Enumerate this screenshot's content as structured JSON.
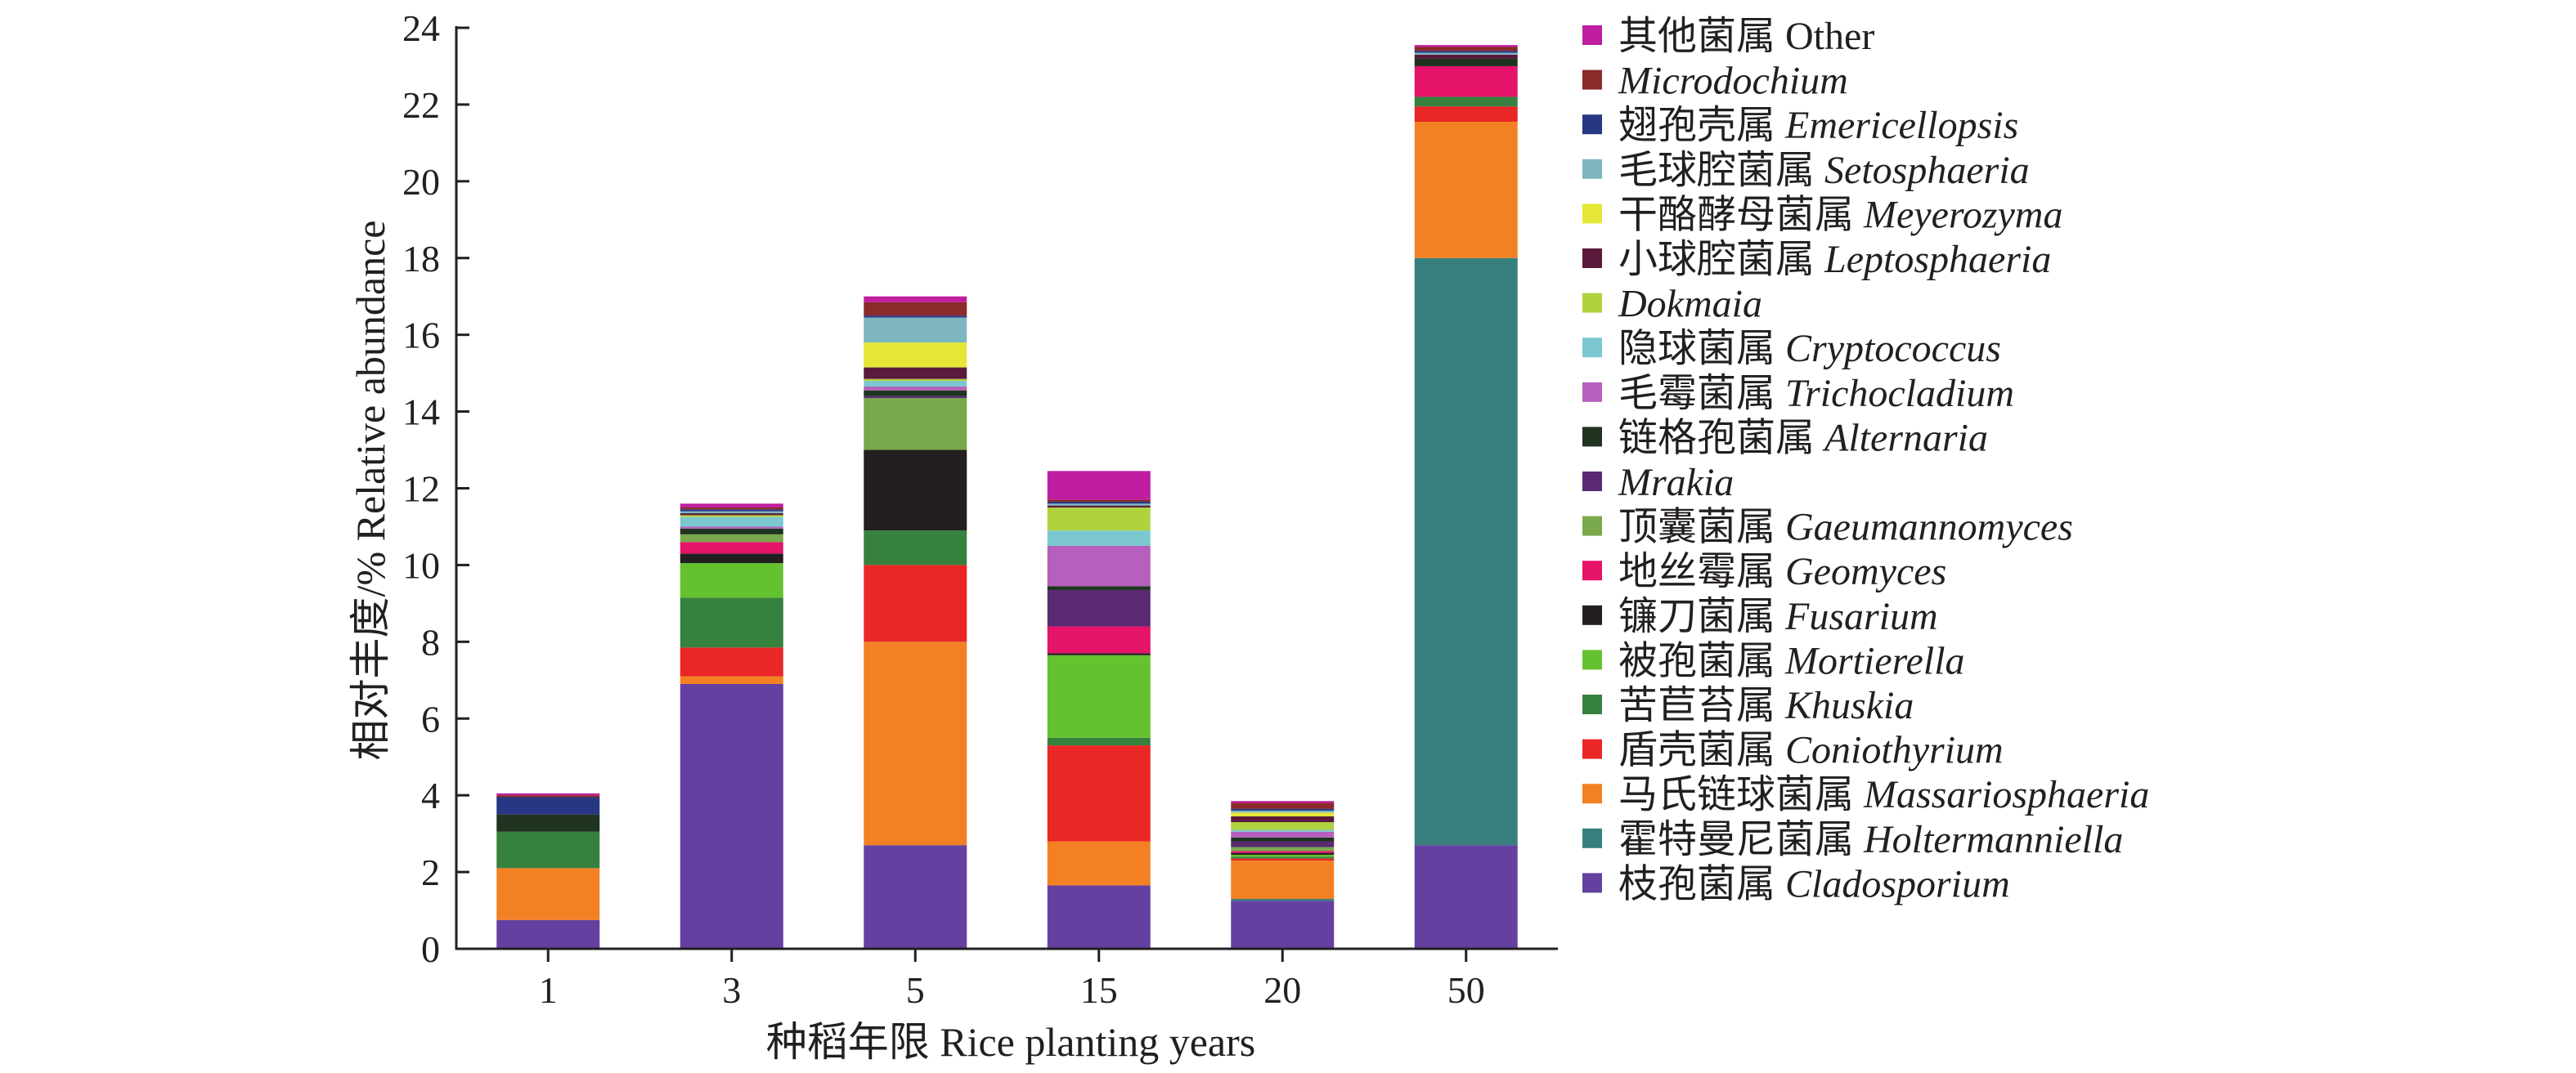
{
  "chart_data": {
    "type": "bar",
    "stacked": true,
    "categories": [
      "1",
      "3",
      "5",
      "15",
      "20",
      "50"
    ],
    "xlabel": "种稻年限 Rice planting years",
    "ylabel": "相对丰度/% Relative abundance",
    "ylim": [
      0,
      24
    ],
    "yticks": [
      "0",
      "2",
      "4",
      "6",
      "8",
      "10",
      "12",
      "14",
      "16",
      "18",
      "20",
      "22",
      "24"
    ],
    "grid": false,
    "legend_position": "right",
    "series": [
      {
        "name": "枝孢菌属",
        "name_italic": "Cladosporium",
        "color": "#6441a1",
        "values": [
          0.75,
          6.9,
          2.7,
          1.65,
          1.25,
          2.7
        ]
      },
      {
        "name": "霍特曼尼菌属",
        "name_italic": "Holtermanniella",
        "color": "#367f7c",
        "values": [
          0,
          0,
          0,
          0,
          0.05,
          15.3
        ]
      },
      {
        "name": "马氏链球菌属",
        "name_italic": "Massariosphaeria",
        "color": "#f38124",
        "values": [
          1.35,
          0.2,
          5.3,
          1.15,
          1.0,
          3.55
        ]
      },
      {
        "name": "盾壳菌属",
        "name_italic": "Coniothyrium",
        "color": "#ea2627",
        "values": [
          0,
          0.75,
          2.0,
          2.5,
          0.05,
          0.4
        ]
      },
      {
        "name": "苦苣苔属",
        "name_italic": "Khuskia",
        "color": "#37813e",
        "values": [
          0.95,
          1.3,
          0.9,
          0.2,
          0.05,
          0.25
        ]
      },
      {
        "name": "被孢菌属",
        "name_italic": "Mortierella",
        "color": "#64c22f",
        "values": [
          0,
          0.9,
          0,
          2.15,
          0.05,
          0
        ]
      },
      {
        "name": "镰刀菌属",
        "name_italic": "Fusarium",
        "color": "#231f20",
        "values": [
          0,
          0.25,
          2.1,
          0.05,
          0.05,
          0
        ]
      },
      {
        "name": "地丝霉属",
        "name_italic": "Geomyces",
        "color": "#e5136a",
        "values": [
          0,
          0.3,
          0,
          0.7,
          0.05,
          0.8
        ]
      },
      {
        "name": "顶囊菌属",
        "name_italic": "Gaeumannomyces",
        "color": "#7aa84d",
        "values": [
          0,
          0.2,
          1.35,
          0,
          0.1,
          0
        ]
      },
      {
        "name": "",
        "name_italic": "Mrakia",
        "color": "#5a2a72",
        "values": [
          0,
          0,
          0.05,
          0.95,
          0.15,
          0
        ]
      },
      {
        "name": "链格孢菌属",
        "name_italic": "Alternaria",
        "color": "#1f3320",
        "values": [
          0.45,
          0.15,
          0.15,
          0.1,
          0.1,
          0.2
        ]
      },
      {
        "name": "毛霉菌属",
        "name_italic": "Trichocladium",
        "color": "#b65fbc",
        "values": [
          0,
          0.05,
          0.1,
          1.05,
          0.15,
          0
        ]
      },
      {
        "name": "隐球菌属",
        "name_italic": "Cryptococcus",
        "color": "#7cc8d0",
        "values": [
          0,
          0.25,
          0.15,
          0.4,
          0.05,
          0
        ]
      },
      {
        "name": "",
        "name_italic": "Dokmaia",
        "color": "#b0d23f",
        "values": [
          0,
          0.05,
          0.05,
          0.6,
          0.2,
          0
        ]
      },
      {
        "name": "小球腔菌属",
        "name_italic": "Leptosphaeria",
        "color": "#5a1a3c",
        "values": [
          0,
          0.05,
          0.3,
          0.05,
          0.15,
          0.1
        ]
      },
      {
        "name": "干酪酵母菌属",
        "name_italic": "Meyerozyma",
        "color": "#e6e637",
        "values": [
          0,
          0,
          0.65,
          0,
          0.1,
          0
        ]
      },
      {
        "name": "毛球腔菌属",
        "name_italic": "Setosphaeria",
        "color": "#7db6c0",
        "values": [
          0,
          0.05,
          0.65,
          0.05,
          0.05,
          0.05
        ]
      },
      {
        "name": "翅孢壳属",
        "name_italic": "Emericellopsis",
        "color": "#273783",
        "values": [
          0.45,
          0.05,
          0.05,
          0.05,
          0.05,
          0.05
        ]
      },
      {
        "name": "",
        "name_italic": "Microdochium",
        "color": "#8b2a2a",
        "values": [
          0.05,
          0.05,
          0.35,
          0.05,
          0.15,
          0.1
        ]
      },
      {
        "name": "其他菌属",
        "name_italic": "Other",
        "color": "#bf1ea0",
        "values": [
          0.05,
          0.1,
          0.15,
          0.75,
          0.05,
          0.05
        ]
      }
    ]
  }
}
